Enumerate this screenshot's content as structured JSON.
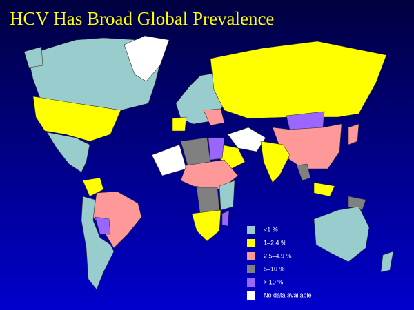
{
  "title": "HCV Has Broad Global Prevalence",
  "legend": [
    {
      "label": "<1 %",
      "color": "#99cccc"
    },
    {
      "label": "1–2.4 %",
      "color": "#ffff00"
    },
    {
      "label": "2.5–4.9 %",
      "color": "#ff9999"
    },
    {
      "label": "5–10 %",
      "color": "#808080"
    },
    {
      "label": "> 10 %",
      "color": "#9966ff"
    },
    {
      "label": "No data available",
      "color": "#ffffff"
    }
  ]
}
